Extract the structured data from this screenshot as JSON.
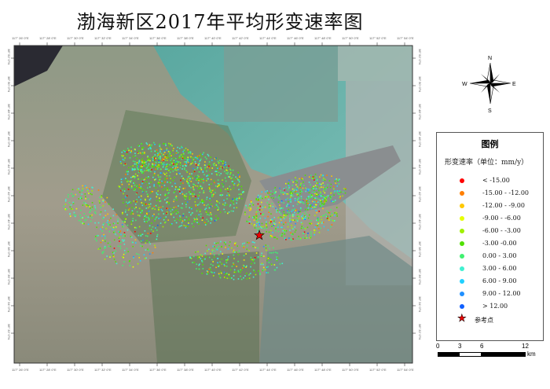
{
  "title": "渤海新区2017年平均形变速率图",
  "lon_ticks": [
    "117° 26' 0\"E",
    "117° 28' 0\"E",
    "117° 30' 0\"E",
    "117° 32' 0\"E",
    "117° 34' 0\"E",
    "117° 36' 0\"E",
    "117° 38' 0\"E",
    "117° 40' 0\"E",
    "117° 42' 0\"E",
    "117° 44' 0\"E",
    "117° 46' 0\"E",
    "117° 48' 0\"E",
    "117° 50' 0\"E",
    "117° 52' 0\"E",
    "117° 54' 0\"E"
  ],
  "lat_ticks": [
    "38° 52' 0\"N",
    "38° 50' 0\"N",
    "38° 48' 0\"N",
    "38° 46' 0\"N",
    "38° 44' 0\"N",
    "38° 42' 0\"N",
    "38° 40' 0\"N",
    "38° 38' 0\"N",
    "38° 36' 0\"N",
    "38° 34' 0\"N",
    "38° 32' 0\"N"
  ],
  "north_arrow": {
    "n": "N",
    "s": "S",
    "e": "E",
    "w": "W"
  },
  "legend": {
    "title": "图例",
    "subtitle": "形变速率（单位：mm/y）",
    "classes": [
      {
        "label": "< -15.00",
        "color": "#ff0000"
      },
      {
        "label": "-15.00 - -12.00",
        "color": "#ff7f00"
      },
      {
        "label": "-12.00 - -9.00",
        "color": "#ffc800"
      },
      {
        "label": "-9.00 - -6.00",
        "color": "#e6ff00"
      },
      {
        "label": "-6.00 - -3.00",
        "color": "#a0f000"
      },
      {
        "label": "-3.00 -0.00",
        "color": "#50e000"
      },
      {
        "label": "0.00 - 3.00",
        "color": "#40f070"
      },
      {
        "label": "3.00 - 6.00",
        "color": "#40f0d0"
      },
      {
        "label": "6.00 - 9.00",
        "color": "#20d0ff"
      },
      {
        "label": "9.00 - 12.00",
        "color": "#2090ff"
      },
      {
        "label": "> 12.00",
        "color": "#1060ff"
      }
    ],
    "reference_point": "参考点"
  },
  "scale_bar": {
    "labels": [
      "0",
      "3",
      "6",
      "12"
    ],
    "unit": "km"
  }
}
